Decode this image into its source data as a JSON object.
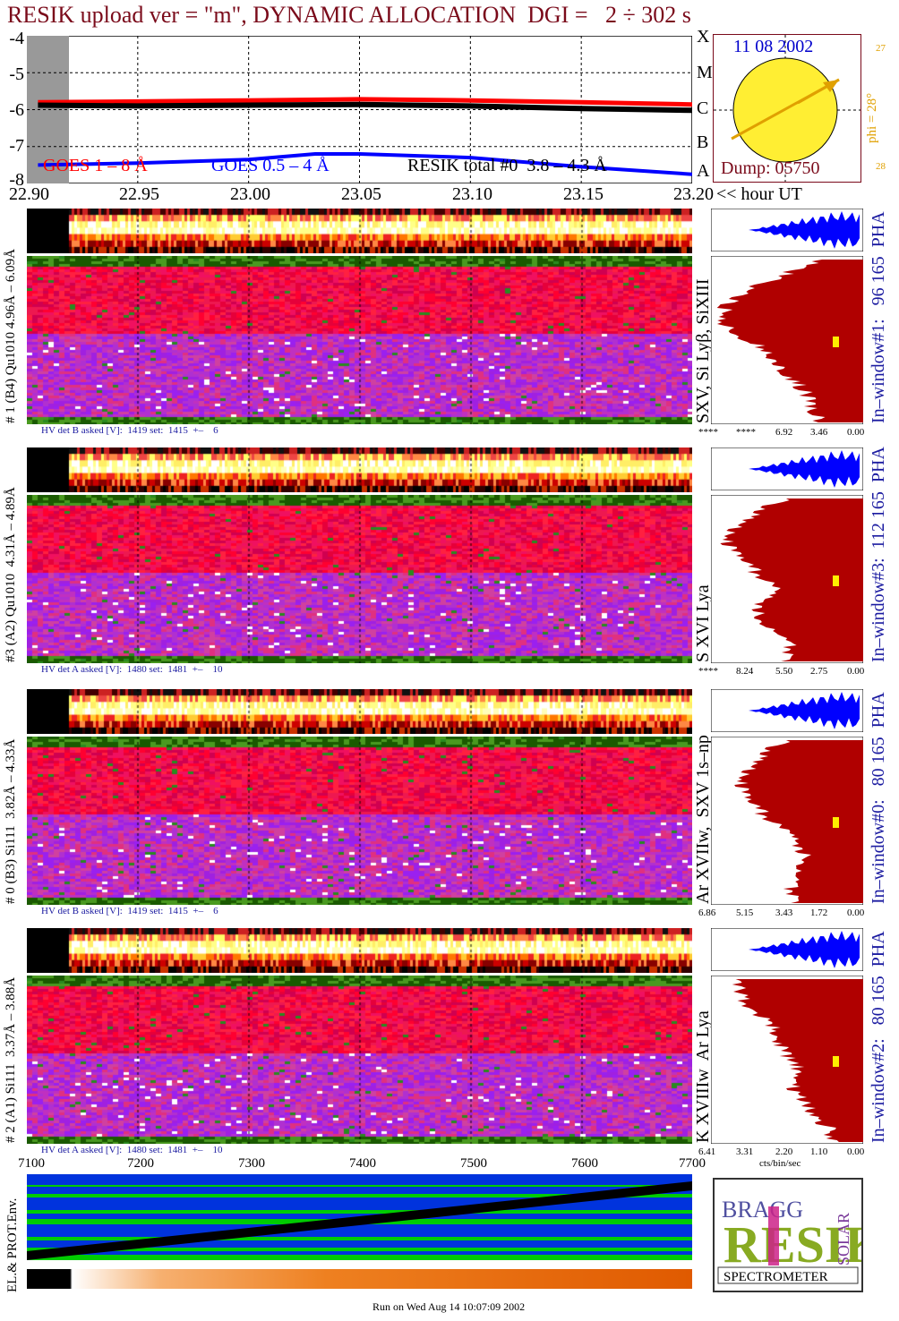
{
  "title": "RESIK upload ver = \"m\", DYNAMIC ALLOCATION  DGI =   2 ÷ 302 s",
  "footer": "Run on Wed Aug 14 10:07:09 2002",
  "colors": {
    "title": "#7a0a1a",
    "goes_long": "#ff0000",
    "goes_short": "#0000ff",
    "resik_total": "#000000",
    "pha": "#0000ff",
    "spectrum": "#b00000",
    "sun": "#ffee33",
    "sun_axis": "#e0a000",
    "label_blue": "#1a1aa0"
  },
  "lightcurve": {
    "yticks": [
      "-4",
      "-5",
      "-6",
      "-7",
      "-8"
    ],
    "class_labels": [
      "X",
      "M",
      "C",
      "B",
      "A"
    ],
    "legend": {
      "goes_long": "GOES 1 – 8 Å",
      "goes_short": "GOES 0.5 – 4 Å",
      "resik": "RESIK total #0  3.8 – 4.3 Å"
    },
    "xticks": [
      "22.90",
      "22.95",
      "23.00",
      "23.05",
      "23.10",
      "23.15",
      "23.20"
    ],
    "xunit": "<< hour UT"
  },
  "sun_inset": {
    "date": "11 08 2002",
    "dump": "Dump: 05750",
    "phi": "phi = 28°",
    "tick_top": "27",
    "tick_bottom": "28"
  },
  "channels": [
    {
      "id": "ch1",
      "left_label": "# 1 (B4) Qu1010 4.96Å – 6.09Å",
      "hv": "HV det B asked [V]:  1419 set:  1415  +–    6",
      "line_label": "SXV, Si Lyβ, SiXIII",
      "window": "In–window#1:   96 165  PHA",
      "scale": [
        "****",
        "****",
        "6.92",
        "3.46",
        "0.00"
      ]
    },
    {
      "id": "ch3",
      "left_label": "#3 (A2) Qu1010  4.31Å – 4.89Å",
      "hv": "HV det A asked [V]:  1480 set:  1481  +–    10",
      "line_label": "S XVI Lya",
      "window": "In–window#3:  112 165  PHA",
      "scale": [
        "****",
        "8.24",
        "5.50",
        "2.75",
        "0.00"
      ]
    },
    {
      "id": "ch0",
      "left_label": "# 0 (B3) Si111  3.82Å – 4.33Å",
      "hv": "HV det B asked [V]:  1419 set:  1415  +–    6",
      "line_label": "Ar XVIIw,  SXV 1s–np",
      "window": "In–window#0:   80 165  PHA",
      "scale": [
        "6.86",
        "5.15",
        "3.43",
        "1.72",
        "0.00"
      ]
    },
    {
      "id": "ch2",
      "left_label": "# 2 (A1) Si111  3.37Å – 3.88Å",
      "hv": "HV det A asked [V]:  1480 set:  1481  +–    10",
      "line_label": "K XVIIIw  Ar Lya",
      "window": "In–window#2:   80 165  PHA",
      "scale": [
        "6.41",
        "3.31",
        "2.20",
        "1.10",
        "0.00"
      ],
      "unit": "cts/bin/sec"
    }
  ],
  "env": {
    "left_label": "EL.& PROT.Env.",
    "xticks": [
      "7100",
      "7200",
      "7300",
      "7400",
      "7500",
      "7600",
      "7700"
    ]
  },
  "logo": {
    "letters": "RESIK",
    "top": "BRAGG",
    "side": "SOLAR",
    "caption": "SPECTROMETER"
  },
  "chart_data": [
    {
      "type": "line",
      "title": "",
      "xlabel": "<< hour UT",
      "ylabel": "",
      "xlim": [
        22.9,
        23.2
      ],
      "ylim": [
        -8,
        -4
      ],
      "series": [
        {
          "name": "GOES 1 – 8 Å",
          "x": [
            22.905,
            22.95,
            23.0,
            23.05,
            23.1,
            23.15,
            23.2
          ],
          "values": [
            -5.8,
            -5.78,
            -5.75,
            -5.72,
            -5.75,
            -5.8,
            -5.86
          ]
        },
        {
          "name": "GOES 0.5 – 4 Å",
          "x": [
            22.905,
            22.95,
            23.0,
            23.03,
            23.05,
            23.1,
            23.15,
            23.2
          ],
          "values": [
            -7.5,
            -7.45,
            -7.35,
            -7.2,
            -7.2,
            -7.3,
            -7.55,
            -7.75
          ]
        },
        {
          "name": "RESIK total #0  3.8 – 4.3 Å",
          "x": [
            22.905,
            22.95,
            23.0,
            23.05,
            23.1,
            23.15,
            23.2
          ],
          "values": [
            -5.88,
            -5.9,
            -5.88,
            -5.86,
            -5.9,
            -5.97,
            -6.02
          ]
        }
      ]
    },
    {
      "type": "area",
      "title": "In–window#1:   96 165  PHA",
      "xlabel": "",
      "ylabel": "",
      "series": [
        {
          "values": [
            0.3,
            0.55,
            0.8,
            0.95,
            1.0,
            0.9,
            0.7,
            0.6,
            0.5,
            0.4,
            0.35,
            0.3
          ]
        }
      ]
    },
    {
      "type": "area",
      "title": "In–window#3:  112 165  PHA",
      "xlabel": "",
      "ylabel": "",
      "series": [
        {
          "values": [
            0.55,
            0.75,
            0.9,
            0.95,
            0.85,
            0.75,
            0.6,
            0.7,
            0.75,
            0.6,
            0.5,
            0.55
          ]
        }
      ]
    },
    {
      "type": "area",
      "title": "In–window#0:   80 165  PHA",
      "xlabel": "",
      "ylabel": "",
      "series": [
        {
          "values": [
            0.55,
            0.7,
            0.8,
            0.85,
            0.8,
            0.7,
            0.55,
            0.45,
            0.4,
            0.45,
            0.5,
            0.48
          ]
        }
      ]
    },
    {
      "type": "area",
      "title": "In–window#2:   80 165  PHA",
      "xlabel": "cts/bin/sec",
      "ylabel": "",
      "series": [
        {
          "values": [
            0.9,
            0.85,
            0.8,
            0.65,
            0.6,
            0.55,
            0.45,
            0.5,
            0.45,
            0.35,
            0.25,
            0.2
          ]
        }
      ]
    }
  ]
}
